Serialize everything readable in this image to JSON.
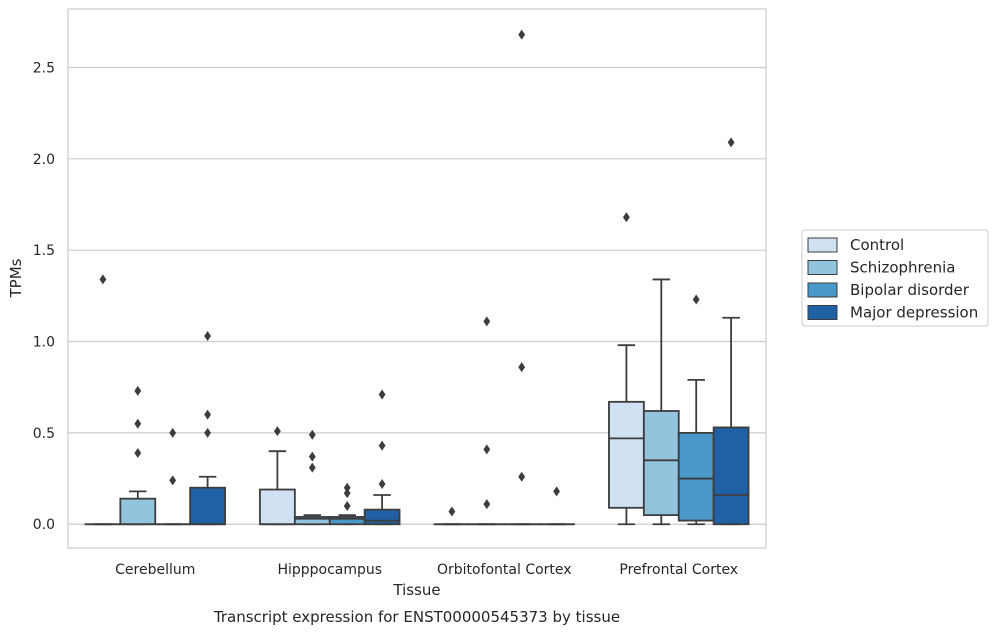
{
  "chart_data": {
    "type": "box",
    "xlabel": "Tissue",
    "ylabel": "TPMs",
    "caption": "Transcript expression for ENST00000545373 by tissue",
    "ylim": [
      -0.13,
      2.82
    ],
    "yticks": [
      0.0,
      0.5,
      1.0,
      1.5,
      2.0,
      2.5
    ],
    "ytick_labels": [
      "0.0",
      "0.5",
      "1.0",
      "1.5",
      "2.0",
      "2.5"
    ],
    "grid": "horizontal",
    "legend_position": "right",
    "categories": [
      "Cerebellum",
      "Hipppocampus",
      "Orbitofontal Cortex",
      "Prefrontal Cortex"
    ],
    "series": [
      {
        "name": "Control",
        "color": "#cfe1f2",
        "boxes": [
          {
            "q1": 0,
            "median": 0,
            "q3": 0,
            "whisker_low": 0,
            "whisker_high": 0,
            "outliers": [
              1.34
            ]
          },
          {
            "q1": 0,
            "median": 0,
            "q3": 0.19,
            "whisker_low": 0,
            "whisker_high": 0.4,
            "outliers": [
              0.51
            ]
          },
          {
            "q1": 0,
            "median": 0,
            "q3": 0,
            "whisker_low": 0,
            "whisker_high": 0,
            "outliers": [
              0.07
            ]
          },
          {
            "q1": 0.09,
            "median": 0.47,
            "q3": 0.67,
            "whisker_low": 0,
            "whisker_high": 0.98,
            "outliers": [
              1.68
            ]
          }
        ]
      },
      {
        "name": "Schizophrenia",
        "color": "#93c4de",
        "boxes": [
          {
            "q1": 0,
            "median": 0,
            "q3": 0.14,
            "whisker_low": 0,
            "whisker_high": 0.18,
            "outliers": [
              0.39,
              0.55,
              0.73
            ]
          },
          {
            "q1": 0,
            "median": 0.03,
            "q3": 0.04,
            "whisker_low": 0,
            "whisker_high": 0.05,
            "outliers": [
              0.31,
              0.37,
              0.49
            ]
          },
          {
            "q1": 0,
            "median": 0,
            "q3": 0,
            "whisker_low": 0,
            "whisker_high": 0,
            "outliers": [
              0.11,
              0.41,
              1.11
            ]
          },
          {
            "q1": 0.05,
            "median": 0.35,
            "q3": 0.62,
            "whisker_low": 0,
            "whisker_high": 1.34,
            "outliers": []
          }
        ]
      },
      {
        "name": "Bipolar disorder",
        "color": "#4a98c9",
        "boxes": [
          {
            "q1": 0,
            "median": 0,
            "q3": 0,
            "whisker_low": 0,
            "whisker_high": 0,
            "outliers": [
              0.24,
              0.5
            ]
          },
          {
            "q1": 0,
            "median": 0.03,
            "q3": 0.04,
            "whisker_low": 0,
            "whisker_high": 0.05,
            "outliers": [
              0.1,
              0.17,
              0.2
            ]
          },
          {
            "q1": 0,
            "median": 0,
            "q3": 0,
            "whisker_low": 0,
            "whisker_high": 0,
            "outliers": [
              0.26,
              0.86,
              2.68
            ]
          },
          {
            "q1": 0.02,
            "median": 0.25,
            "q3": 0.5,
            "whisker_low": 0,
            "whisker_high": 0.79,
            "outliers": [
              1.23
            ]
          }
        ]
      },
      {
        "name": "Major depression",
        "color": "#2060a4",
        "boxes": [
          {
            "q1": 0,
            "median": 0,
            "q3": 0.2,
            "whisker_low": 0,
            "whisker_high": 0.26,
            "outliers": [
              0.5,
              0.6,
              1.03
            ]
          },
          {
            "q1": 0,
            "median": 0.02,
            "q3": 0.08,
            "whisker_low": 0,
            "whisker_high": 0.16,
            "outliers": [
              0.22,
              0.43,
              0.71
            ]
          },
          {
            "q1": 0,
            "median": 0,
            "q3": 0,
            "whisker_low": 0,
            "whisker_high": 0,
            "outliers": [
              0.18
            ]
          },
          {
            "q1": 0,
            "median": 0.16,
            "q3": 0.53,
            "whisker_low": 0,
            "whisker_high": 1.13,
            "outliers": [
              2.09
            ]
          }
        ]
      }
    ]
  }
}
